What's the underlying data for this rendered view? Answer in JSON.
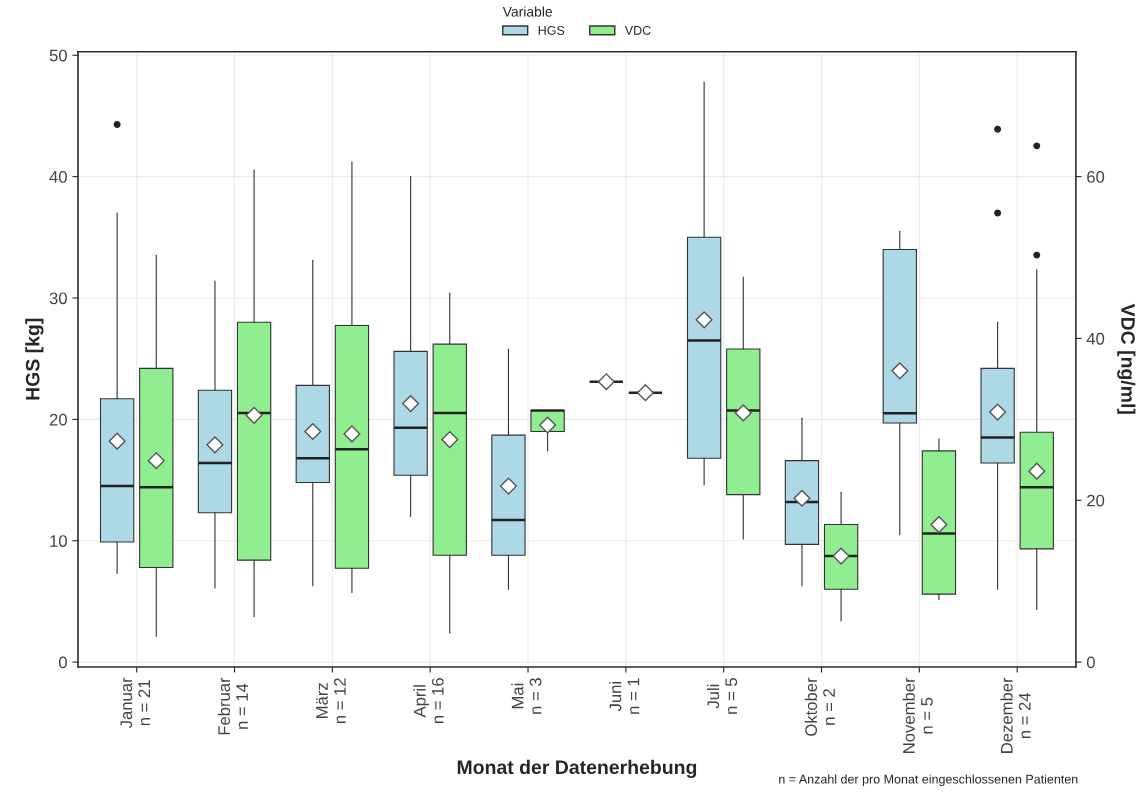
{
  "chart_data": {
    "type": "box",
    "categories": [
      "Januar\nn = 21",
      "Februar\nn = 14",
      "März\nn = 12",
      "April\nn = 16",
      "Mai\nn = 3",
      "Juni\nn = 1",
      "Juli\nn = 5",
      "Oktober\nn = 2",
      "November\nn = 5",
      "Dezember\nn = 24"
    ],
    "series": [
      {
        "name": "HGS",
        "color": "#add8e6",
        "axis": "y",
        "boxes": [
          {
            "low": 7.3,
            "q1": 9.9,
            "median": 14.5,
            "q3": 21.7,
            "high": 37.0,
            "mean": 18.2,
            "outliers": [
              44.3
            ]
          },
          {
            "low": 6.1,
            "q1": 12.3,
            "median": 16.4,
            "q3": 22.4,
            "high": 31.4,
            "mean": 17.9
          },
          {
            "low": 6.3,
            "q1": 14.8,
            "median": 16.8,
            "q3": 22.8,
            "high": 33.1,
            "mean": 19.0
          },
          {
            "low": 12.0,
            "q1": 15.4,
            "median": 19.3,
            "q3": 25.6,
            "high": 40.0,
            "mean": 21.3
          },
          {
            "low": 6.0,
            "q1": 8.8,
            "median": 11.7,
            "q3": 18.7,
            "high": 25.8,
            "mean": 14.5
          },
          {
            "low": 23.1,
            "q1": 23.1,
            "median": 23.1,
            "q3": 23.1,
            "high": 23.1,
            "mean": 23.1
          },
          {
            "low": 14.6,
            "q1": 16.8,
            "median": 26.5,
            "q3": 35.0,
            "high": 47.8,
            "mean": 28.2
          },
          {
            "low": 6.3,
            "q1": 9.7,
            "median": 13.2,
            "q3": 16.6,
            "high": 20.1,
            "mean": 13.5
          },
          {
            "low": 10.5,
            "q1": 19.7,
            "median": 20.5,
            "q3": 34.0,
            "high": 35.5,
            "mean": 24.0
          },
          {
            "low": 6.0,
            "q1": 16.4,
            "median": 18.5,
            "q3": 24.2,
            "high": 28.0,
            "mean": 20.6,
            "outliers": [
              43.9,
              37.0
            ]
          }
        ]
      },
      {
        "name": "VDC",
        "color": "#90ee90",
        "axis": "y2",
        "boxes": [
          {
            "low": 3.2,
            "q1": 11.7,
            "median": 21.6,
            "q3": 36.3,
            "high": 50.3,
            "mean": 24.9
          },
          {
            "low": 5.6,
            "q1": 12.6,
            "median": 30.8,
            "q3": 42.0,
            "high": 60.8,
            "mean": 30.5
          },
          {
            "low": 8.6,
            "q1": 11.6,
            "median": 26.3,
            "q3": 41.6,
            "high": 61.8,
            "mean": 28.2
          },
          {
            "low": 3.6,
            "q1": 13.2,
            "median": 30.8,
            "q3": 39.3,
            "high": 45.6,
            "mean": 27.5
          },
          {
            "low": 26.1,
            "q1": 28.5,
            "median": 31.1,
            "q3": 31.1,
            "high": 31.1,
            "mean": 29.3
          },
          {
            "low": 33.3,
            "q1": 33.3,
            "median": 33.3,
            "q3": 33.3,
            "high": 33.3,
            "mean": 33.3
          },
          {
            "low": 15.2,
            "q1": 20.7,
            "median": 31.1,
            "q3": 38.7,
            "high": 47.6,
            "mean": 30.8
          },
          {
            "low": 5.1,
            "q1": 9.0,
            "median": 13.1,
            "q3": 17.0,
            "high": 21.0,
            "mean": 13.1
          },
          {
            "low": 7.7,
            "q1": 8.4,
            "median": 15.9,
            "q3": 26.1,
            "high": 27.6,
            "mean": 17.0
          },
          {
            "low": 6.5,
            "q1": 14.0,
            "median": 21.6,
            "q3": 28.4,
            "high": 48.5,
            "mean": 23.6,
            "outliers": [
              63.8,
              50.3
            ]
          }
        ]
      }
    ],
    "ylim": [
      -0.4,
      50.3
    ],
    "yticks": [
      0,
      10,
      20,
      30,
      40,
      50
    ],
    "y2lim": [
      -0.6,
      75.45
    ],
    "y2ticks": [
      0,
      20,
      40,
      60
    ],
    "xlabel": "Monat der Datenerhebung",
    "ylabel": "HGS [kg]",
    "y2label": "VDC [ng/ml]",
    "legend_title": "Variable",
    "legend": "top",
    "grid": true,
    "annotations": [
      "n = Anzahl der pro Monat eingeschlossenen Patienten"
    ]
  }
}
